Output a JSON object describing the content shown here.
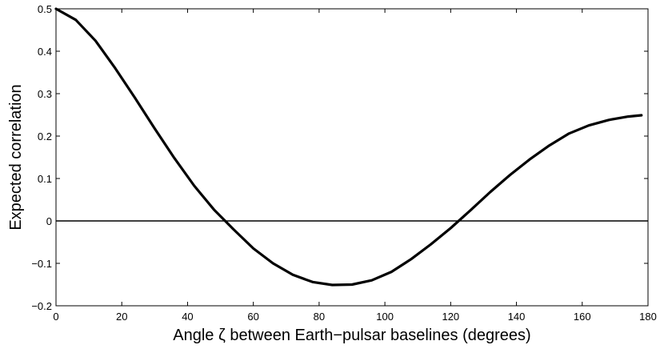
{
  "chart_data": {
    "type": "line",
    "title": "",
    "xlabel": "Angle ζ between Earth−pulsar baselines (degrees)",
    "ylabel": "Expected correlation",
    "xlim": [
      0,
      180
    ],
    "ylim": [
      -0.2,
      0.5
    ],
    "xticks": [
      0,
      20,
      40,
      60,
      80,
      100,
      120,
      140,
      160,
      180
    ],
    "xtick_labels": [
      "0",
      "20",
      "40",
      "60",
      "80",
      "100",
      "120",
      "140",
      "160",
      "180"
    ],
    "yticks": [
      -0.2,
      -0.1,
      0,
      0.1,
      0.2,
      0.3,
      0.4,
      0.5
    ],
    "ytick_labels": [
      "−0.2",
      "−0.1",
      "0",
      "0.1",
      "0.2",
      "0.3",
      "0.4",
      "0.5"
    ],
    "grid": false,
    "zero_line": true,
    "series": [
      {
        "x": [
          0,
          6,
          12,
          18,
          24,
          30,
          36,
          42,
          48,
          54,
          60,
          66,
          72,
          78,
          84,
          90,
          96,
          102,
          108,
          114,
          120,
          126,
          132,
          138,
          144,
          150,
          156,
          162,
          168,
          174,
          178
        ],
        "y": [
          0.5,
          0.474,
          0.425,
          0.36,
          0.29,
          0.218,
          0.148,
          0.083,
          0.027,
          -0.02,
          -0.065,
          -0.1,
          -0.127,
          -0.144,
          -0.151,
          -0.15,
          -0.14,
          -0.12,
          -0.09,
          -0.055,
          -0.017,
          0.025,
          0.068,
          0.108,
          0.145,
          0.178,
          0.206,
          0.225,
          0.238,
          0.246,
          0.249
        ],
        "color": "#000000"
      }
    ]
  }
}
